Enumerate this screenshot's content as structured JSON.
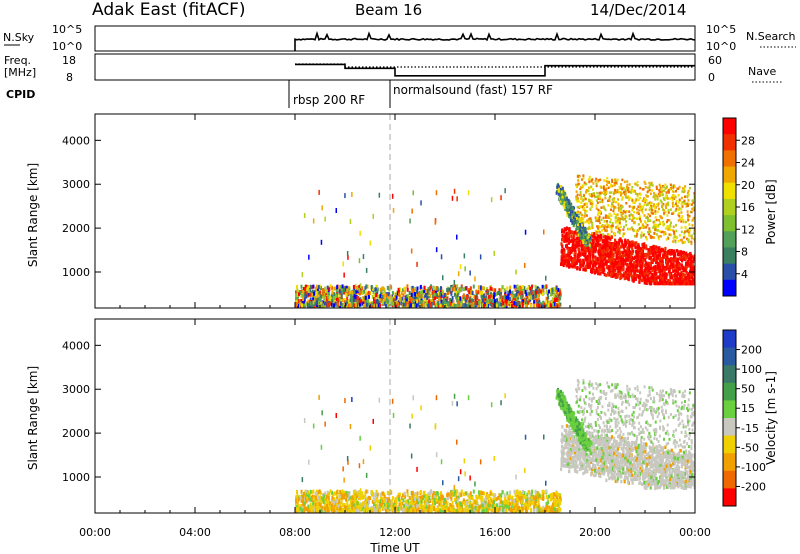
{
  "header": {
    "station": "Adak East (fitACF)",
    "beam": "Beam 16",
    "date": "14/Dec/2014"
  },
  "top_panels": {
    "nsky_label": "N.Sky",
    "nsearch_label": "N.Search",
    "freq_label_line1": "Freq.",
    "freq_label_line2": "[MHz]",
    "nave_label": "Nave",
    "cpid_label": "CPID",
    "nsky_ticks": [
      "10^5",
      "10^0"
    ],
    "nsearch_ticks": [
      "10^5",
      "10^0"
    ],
    "freq_ticks": [
      "18",
      "8"
    ],
    "nave_ticks": [
      "60",
      "0"
    ],
    "cpid_segments": [
      {
        "start": 8.0,
        "label": "rbsp 200 RF"
      },
      {
        "start": 12.0,
        "label": "normalsound (fast) 157 RF"
      }
    ]
  },
  "axes": {
    "xlabel": "Time UT",
    "ylabel": "Slant Range [km]",
    "x_ticks": [
      "00:00",
      "04:00",
      "08:00",
      "12:00",
      "16:00",
      "20:00",
      "00:00"
    ],
    "y_ticks": [
      "1000",
      "2000",
      "3000",
      "4000"
    ]
  },
  "power_scale": {
    "label": "Power [dB]",
    "ticks": [
      "4",
      "8",
      "12",
      "16",
      "20",
      "24",
      "28"
    ],
    "colors": [
      "#0000ff",
      "#2a4fa8",
      "#3a8060",
      "#52a05a",
      "#7fc030",
      "#b0d020",
      "#f0e000",
      "#f0a800",
      "#f07000",
      "#f03000",
      "#ff0000"
    ]
  },
  "velocity_scale": {
    "label": "Velocity [m s-1]",
    "ticks": [
      "200",
      "100",
      "50",
      "15",
      "-15",
      "-50",
      "-100",
      "-200"
    ],
    "colors": [
      "#1e3cc8",
      "#2a5aa0",
      "#3a7868",
      "#44a048",
      "#6ad040",
      "#c8c8c0",
      "#f0d000",
      "#f0a000",
      "#f06800",
      "#ff0000"
    ]
  },
  "chart_data": [
    {
      "type": "heatmap",
      "name": "Power",
      "x_range_hours": [
        0,
        24
      ],
      "y_range_km": [
        180,
        4600
      ],
      "regions": [
        {
          "x": [
            8.0,
            18.6
          ],
          "y": [
            180,
            600
          ],
          "level": "mixed"
        },
        {
          "x": [
            18.6,
            24.0
          ],
          "y": [
            700,
            1300
          ],
          "level": 28
        },
        {
          "x": [
            18.8,
            24.0
          ],
          "y": [
            1300,
            2000
          ],
          "level": 24
        },
        {
          "x": [
            19.5,
            23.5
          ],
          "y": [
            2000,
            3200
          ],
          "level": 20
        },
        {
          "x": [
            18.5,
            19.3
          ],
          "y": [
            1600,
            2600
          ],
          "level": 12
        }
      ]
    },
    {
      "type": "heatmap",
      "name": "Velocity",
      "x_range_hours": [
        0,
        24
      ],
      "y_range_km": [
        180,
        4600
      ],
      "regions": [
        {
          "x": [
            8.0,
            18.6
          ],
          "y": [
            180,
            600
          ],
          "level": -50
        },
        {
          "x": [
            19.0,
            24.0
          ],
          "y": [
            700,
            2600
          ],
          "level": 0
        },
        {
          "x": [
            18.6,
            19.8
          ],
          "y": [
            1800,
            3400
          ],
          "level": 15
        }
      ]
    },
    {
      "type": "line",
      "name": "Freq. [MHz]",
      "x": [
        8.0,
        10.0,
        10.0,
        12.0,
        12.0,
        18.0,
        18.0,
        24.0
      ],
      "y": [
        14.0,
        14.0,
        12.5,
        12.5,
        9.6,
        9.6,
        13.5,
        13.5
      ],
      "ylim": [
        8,
        18
      ]
    },
    {
      "type": "line",
      "name": "Nave",
      "x": [
        8.0,
        10.0,
        10.0,
        24.0
      ],
      "y": [
        37,
        37,
        30,
        30
      ],
      "ylim": [
        0,
        60
      ]
    }
  ]
}
